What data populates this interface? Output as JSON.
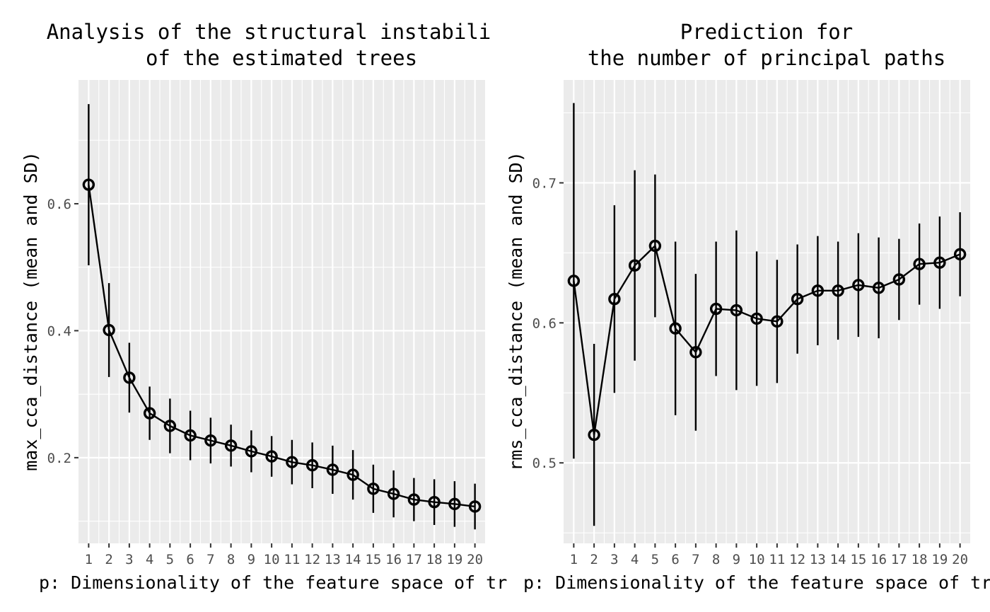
{
  "chart_data": [
    {
      "type": "line",
      "title_lines": [
        "Analysis of the structural instabili",
        "of the estimated trees"
      ],
      "xlabel": "p: Dimensionality of the feature space of tr",
      "ylabel": "max_cca_distance (mean and SD)",
      "x": [
        1,
        2,
        3,
        4,
        5,
        6,
        7,
        8,
        9,
        10,
        11,
        12,
        13,
        14,
        15,
        16,
        17,
        18,
        19,
        20
      ],
      "xlim": [
        0.5,
        20.5
      ],
      "ylim": [
        0.065,
        0.795
      ],
      "yticks": [
        0.2,
        0.4,
        0.6
      ],
      "ytick_labels": [
        "0.2",
        "0.4",
        "0.6"
      ],
      "yminor": [
        0.1,
        0.3,
        0.5,
        0.7
      ],
      "series": [
        {
          "mean": [
            0.63,
            0.401,
            0.326,
            0.27,
            0.25,
            0.235,
            0.227,
            0.219,
            0.21,
            0.202,
            0.193,
            0.188,
            0.181,
            0.173,
            0.151,
            0.143,
            0.134,
            0.13,
            0.127,
            0.123
          ],
          "sd": [
            0.127,
            0.074,
            0.055,
            0.042,
            0.043,
            0.039,
            0.036,
            0.033,
            0.033,
            0.032,
            0.035,
            0.036,
            0.038,
            0.039,
            0.038,
            0.037,
            0.034,
            0.036,
            0.036,
            0.036
          ]
        }
      ],
      "grid": true
    },
    {
      "type": "line",
      "title_lines": [
        "Prediction for",
        "the number of principal paths"
      ],
      "xlabel": "p: Dimensionality of the feature space of tre",
      "ylabel": "rms_cca_distance (mean and SD)",
      "x": [
        1,
        2,
        3,
        4,
        5,
        6,
        7,
        8,
        9,
        10,
        11,
        12,
        13,
        14,
        15,
        16,
        17,
        18,
        19,
        20
      ],
      "xlim": [
        0.5,
        20.5
      ],
      "ylim": [
        0.4425,
        0.7735
      ],
      "yticks": [
        0.5,
        0.6,
        0.7
      ],
      "ytick_labels": [
        "0.5",
        "0.6",
        "0.7"
      ],
      "yminor": [
        0.45,
        0.55,
        0.65,
        0.75
      ],
      "series": [
        {
          "mean": [
            0.63,
            0.52,
            0.617,
            0.641,
            0.655,
            0.596,
            0.579,
            0.61,
            0.609,
            0.603,
            0.601,
            0.617,
            0.623,
            0.623,
            0.627,
            0.625,
            0.631,
            0.642,
            0.643,
            0.649
          ],
          "sd": [
            0.127,
            0.065,
            0.067,
            0.068,
            0.051,
            0.062,
            0.056,
            0.048,
            0.057,
            0.048,
            0.044,
            0.039,
            0.039,
            0.035,
            0.037,
            0.036,
            0.029,
            0.029,
            0.033,
            0.03
          ]
        }
      ],
      "grid": true
    }
  ]
}
